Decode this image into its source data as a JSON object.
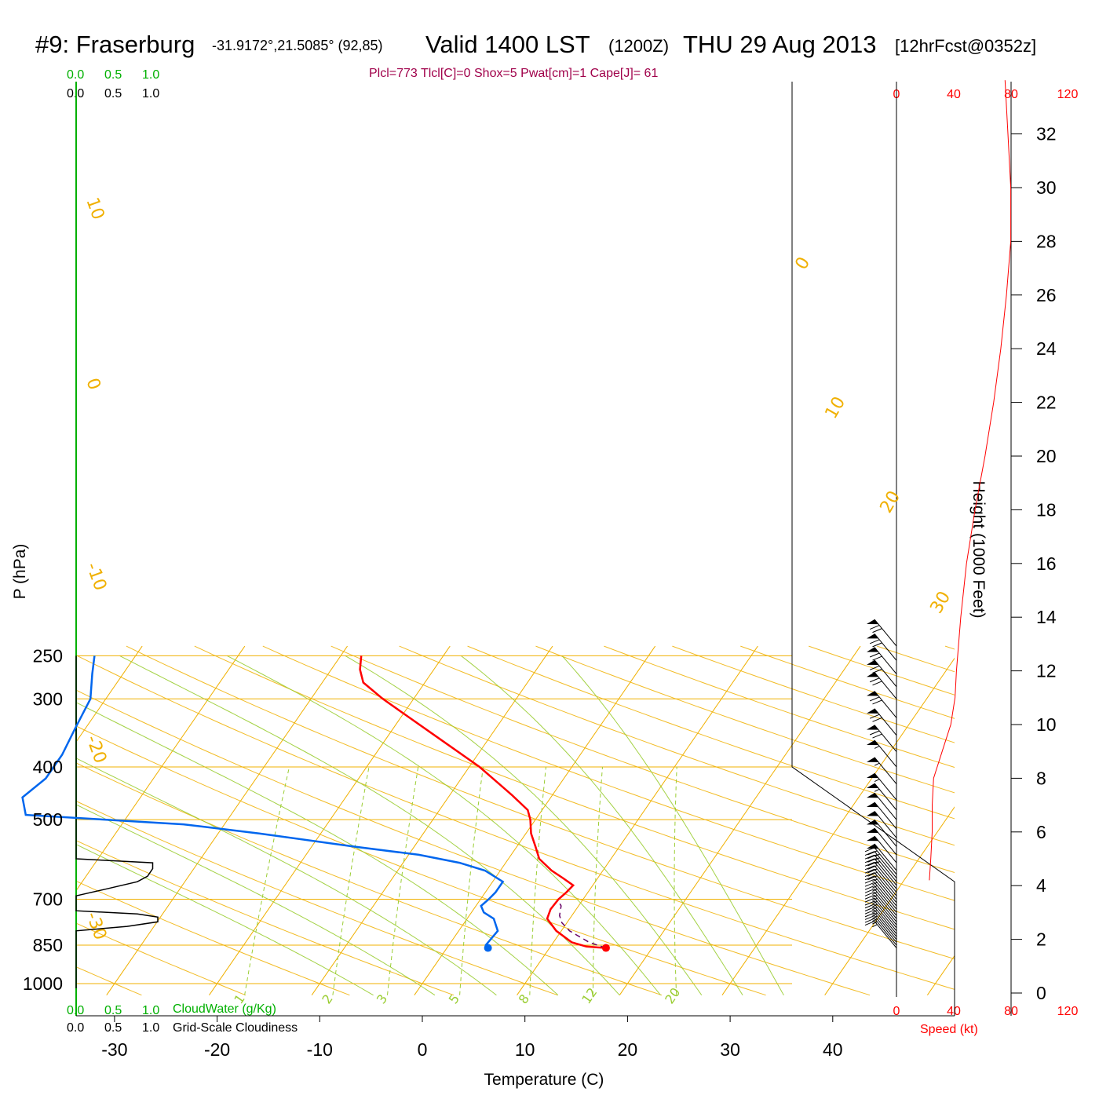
{
  "header": {
    "station": "#9: Fraserburg",
    "coords": "-31.9172°,21.5085° (92,85)",
    "valid": "Valid 1400 LST",
    "zulu": "(1200Z)",
    "date": "THU 29 Aug 2013",
    "forecast": "[12hrFcst@0352z]",
    "indices": "Plcl=773 Tlcl[C]=0 Shox=5 Pwat[cm]=1 Cape[J]= 61"
  },
  "colors": {
    "temperature": "#ff0000",
    "dewpoint": "#0066ee",
    "parcel": "#660066",
    "isotherm": "#f0b000",
    "mixing_ratio": "#9acd32",
    "cloud_water": "#00b000",
    "speed_axis": "#ff0000"
  },
  "chart_data": {
    "type": "skew-t",
    "xlabel": "Temperature (C)",
    "ylabel": "P (hPa)",
    "y2label": "Height (1000 Feet)",
    "x_ticks": [
      "-30",
      "-20",
      "-10",
      "0",
      "10",
      "20",
      "30",
      "40"
    ],
    "p_ticks": [
      "250",
      "300",
      "400",
      "500",
      "700",
      "850",
      "1000"
    ],
    "height_ticks": [
      "0",
      "2",
      "4",
      "6",
      "8",
      "10",
      "12",
      "14",
      "16",
      "18",
      "20",
      "22",
      "24",
      "26",
      "28",
      "30",
      "32"
    ],
    "cloud_scale": {
      "top_green": [
        "0.0",
        "0.5",
        "1.0"
      ],
      "top_black": [
        "0.0",
        "0.5",
        "1.0"
      ],
      "bottom_green": [
        "0.0",
        "0.5",
        "1.0"
      ],
      "bottom_black": [
        "0.0",
        "0.5",
        "1.0"
      ],
      "cloud_water_label": "CloudWater (g/Kg)",
      "cloudiness_label": "Grid-Scale Cloudiness"
    },
    "speed_scale": {
      "ticks": [
        "0",
        "40",
        "80",
        "120"
      ],
      "label": "Speed (kt)"
    },
    "isotherm_labels": [
      "10",
      "0",
      "-10",
      "-20",
      "-30",
      "0",
      "10",
      "20",
      "30"
    ],
    "mixing_ratio_labels": [
      "1",
      "2",
      "3",
      "5",
      "8",
      "12",
      "20"
    ],
    "temperature_profile": [
      {
        "p": 860,
        "t": 15.5
      },
      {
        "p": 855,
        "t": 13.5
      },
      {
        "p": 840,
        "t": 11.8
      },
      {
        "p": 800,
        "t": 9.5
      },
      {
        "p": 760,
        "t": 7.8
      },
      {
        "p": 730,
        "t": 7.5
      },
      {
        "p": 700,
        "t": 7.6
      },
      {
        "p": 680,
        "t": 7.9
      },
      {
        "p": 660,
        "t": 8.1
      },
      {
        "p": 640,
        "t": 6.6
      },
      {
        "p": 620,
        "t": 5.0
      },
      {
        "p": 590,
        "t": 3.0
      },
      {
        "p": 560,
        "t": 1.8
      },
      {
        "p": 530,
        "t": 0.5
      },
      {
        "p": 500,
        "t": -0.5
      },
      {
        "p": 480,
        "t": -1.4
      },
      {
        "p": 450,
        "t": -4.0
      },
      {
        "p": 400,
        "t": -9.0
      },
      {
        "p": 350,
        "t": -15.5
      },
      {
        "p": 300,
        "t": -23.0
      },
      {
        "p": 280,
        "t": -26.0
      },
      {
        "p": 265,
        "t": -27.2
      },
      {
        "p": 250,
        "t": -28.0
      }
    ],
    "dewpoint_profile": [
      {
        "p": 860,
        "t": 4.0
      },
      {
        "p": 850,
        "t": 3.6
      },
      {
        "p": 800,
        "t": 3.8
      },
      {
        "p": 760,
        "t": 2.6
      },
      {
        "p": 740,
        "t": 1.2
      },
      {
        "p": 720,
        "t": 0.5
      },
      {
        "p": 700,
        "t": 0.8
      },
      {
        "p": 680,
        "t": 1.0
      },
      {
        "p": 650,
        "t": 1.0
      },
      {
        "p": 620,
        "t": -1.5
      },
      {
        "p": 600,
        "t": -4.5
      },
      {
        "p": 580,
        "t": -9.0
      },
      {
        "p": 560,
        "t": -16.0
      },
      {
        "p": 530,
        "t": -26.0
      },
      {
        "p": 510,
        "t": -34.0
      },
      {
        "p": 490,
        "t": -50.0
      },
      {
        "p": 455,
        "t": -51.5
      },
      {
        "p": 420,
        "t": -50.5
      },
      {
        "p": 380,
        "t": -50.5
      },
      {
        "p": 340,
        "t": -51.0
      },
      {
        "p": 300,
        "t": -51.5
      },
      {
        "p": 270,
        "t": -53.0
      },
      {
        "p": 250,
        "t": -54.0
      }
    ],
    "parcel_profile": [
      {
        "p": 860,
        "t": 15.5
      },
      {
        "p": 840,
        "t": 13.5
      },
      {
        "p": 800,
        "t": 10.8
      },
      {
        "p": 773,
        "t": 9.5
      },
      {
        "p": 750,
        "t": 8.8
      },
      {
        "p": 720,
        "t": 8.3
      },
      {
        "p": 710,
        "t": 7.9
      }
    ],
    "surface_temperature": {
      "p": 860,
      "t": 15.5
    },
    "surface_dewpoint": {
      "p": 860,
      "t": 4.0
    },
    "cloudiness_profile": [
      {
        "p": 1020,
        "frac": 0.0
      },
      {
        "p": 860,
        "frac": 0.0
      },
      {
        "p": 800,
        "frac": 0.0
      },
      {
        "p": 785,
        "frac": 0.5
      },
      {
        "p": 770,
        "frac": 0.8
      },
      {
        "p": 755,
        "frac": 0.8
      },
      {
        "p": 745,
        "frac": 0.6
      },
      {
        "p": 735,
        "frac": 0.0
      },
      {
        "p": 690,
        "frac": 0.0
      },
      {
        "p": 670,
        "frac": 0.3
      },
      {
        "p": 650,
        "frac": 0.6
      },
      {
        "p": 635,
        "frac": 0.7
      },
      {
        "p": 615,
        "frac": 0.75
      },
      {
        "p": 600,
        "frac": 0.75
      },
      {
        "p": 590,
        "frac": 0.0
      },
      {
        "p": 250,
        "frac": 0.0
      }
    ],
    "wind_speed_profile": [
      {
        "h": 4.2,
        "kt": 23
      },
      {
        "h": 5.0,
        "kt": 24
      },
      {
        "h": 6.0,
        "kt": 25
      },
      {
        "h": 7.0,
        "kt": 25
      },
      {
        "h": 8.0,
        "kt": 26
      },
      {
        "h": 9.0,
        "kt": 32
      },
      {
        "h": 10.0,
        "kt": 38
      },
      {
        "h": 11.0,
        "kt": 41
      },
      {
        "h": 12.0,
        "kt": 42
      },
      {
        "h": 14.0,
        "kt": 45
      },
      {
        "h": 16.0,
        "kt": 49
      },
      {
        "h": 18.0,
        "kt": 55
      },
      {
        "h": 20.0,
        "kt": 62
      },
      {
        "h": 22.0,
        "kt": 68
      },
      {
        "h": 24.0,
        "kt": 73
      },
      {
        "h": 26.0,
        "kt": 77
      },
      {
        "h": 28.0,
        "kt": 80
      },
      {
        "h": 30.0,
        "kt": 80
      },
      {
        "h": 32.0,
        "kt": 78
      },
      {
        "h": 34.0,
        "kt": 76
      }
    ],
    "wind_barbs": [
      {
        "p": 860,
        "kt": 15
      },
      {
        "p": 850,
        "kt": 15
      },
      {
        "p": 840,
        "kt": 15
      },
      {
        "p": 830,
        "kt": 15
      },
      {
        "p": 820,
        "kt": 15
      },
      {
        "p": 810,
        "kt": 15
      },
      {
        "p": 800,
        "kt": 15
      },
      {
        "p": 790,
        "kt": 15
      },
      {
        "p": 780,
        "kt": 15
      },
      {
        "p": 770,
        "kt": 15
      },
      {
        "p": 760,
        "kt": 15
      },
      {
        "p": 750,
        "kt": 15
      },
      {
        "p": 740,
        "kt": 15
      },
      {
        "p": 730,
        "kt": 15
      },
      {
        "p": 720,
        "kt": 15
      },
      {
        "p": 710,
        "kt": 15
      },
      {
        "p": 700,
        "kt": 20
      },
      {
        "p": 690,
        "kt": 20
      },
      {
        "p": 680,
        "kt": 20
      },
      {
        "p": 670,
        "kt": 20
      },
      {
        "p": 660,
        "kt": 20
      },
      {
        "p": 650,
        "kt": 25
      },
      {
        "p": 640,
        "kt": 25
      },
      {
        "p": 630,
        "kt": 25
      },
      {
        "p": 620,
        "kt": 50
      },
      {
        "p": 600,
        "kt": 50
      },
      {
        "p": 580,
        "kt": 50
      },
      {
        "p": 560,
        "kt": 50
      },
      {
        "p": 540,
        "kt": 50
      },
      {
        "p": 520,
        "kt": 50
      },
      {
        "p": 500,
        "kt": 50
      },
      {
        "p": 480,
        "kt": 55
      },
      {
        "p": 460,
        "kt": 55
      },
      {
        "p": 430,
        "kt": 55
      },
      {
        "p": 400,
        "kt": 55
      },
      {
        "p": 375,
        "kt": 70
      },
      {
        "p": 350,
        "kt": 70
      },
      {
        "p": 325,
        "kt": 70
      },
      {
        "p": 300,
        "kt": 70
      },
      {
        "p": 285,
        "kt": 70
      },
      {
        "p": 270,
        "kt": 70
      },
      {
        "p": 255,
        "kt": 70
      },
      {
        "p": 240,
        "kt": 70
      }
    ]
  }
}
